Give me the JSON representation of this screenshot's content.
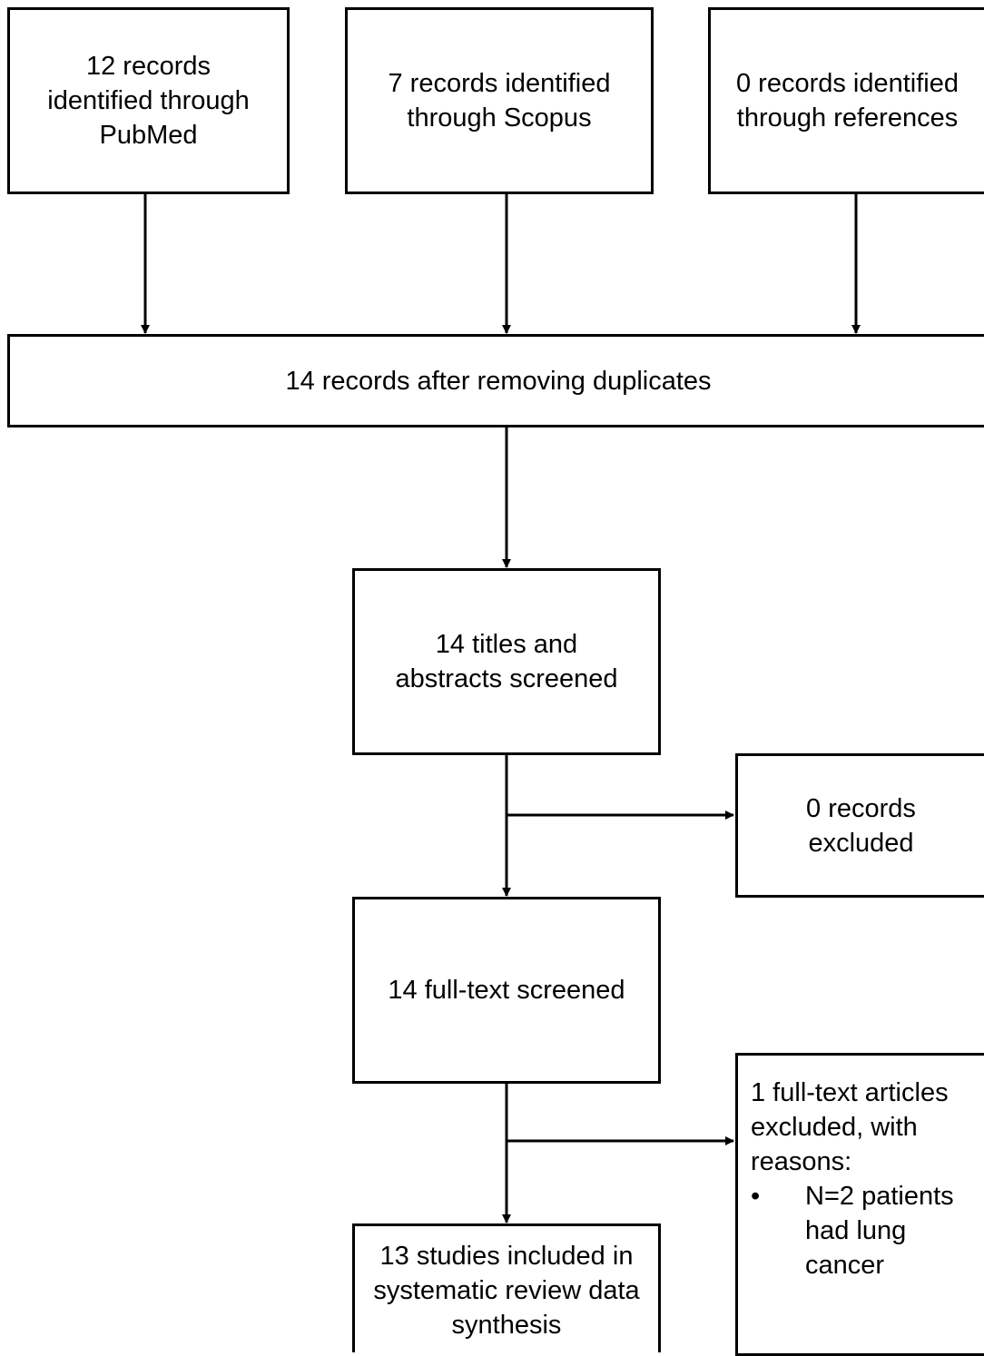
{
  "sources": {
    "pubmed": "12 records identified through PubMed",
    "scopus": "7 records identified through Scopus",
    "references": "0 records identified through references"
  },
  "after_duplicates": "14 records after removing duplicates",
  "screened_titles": "14 titles and abstracts screened",
  "excluded_records": "0 records excluded",
  "fulltext_screened": "14 full-text screened",
  "fulltext_excluded": {
    "heading": "1 full-text articles excluded, with reasons:",
    "bullet": "•",
    "reasons": [
      "N=2 patients had lung cancer"
    ]
  },
  "included": "13 studies included in systematic review data synthesis",
  "colors": {
    "line": "#000000",
    "box_fill": "#ffffff"
  }
}
